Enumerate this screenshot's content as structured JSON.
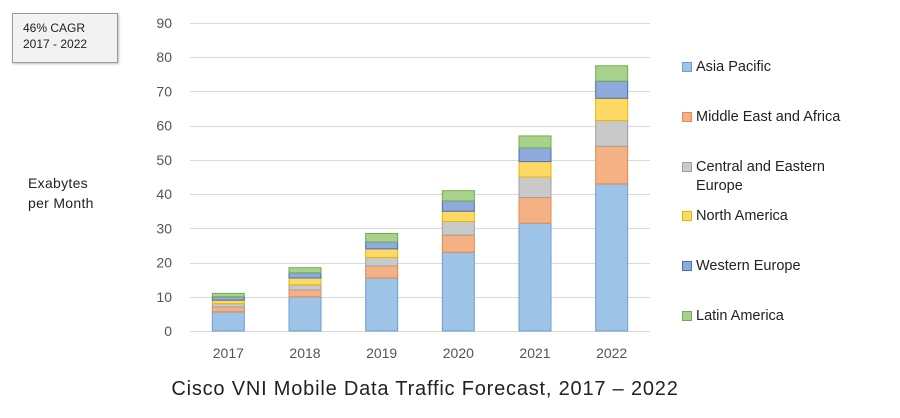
{
  "chart_data": {
    "type": "bar",
    "stacked": true,
    "title": "Cisco VNI Mobile Data Traffic Forecast, 2017 – 2022",
    "ylabel_lines": [
      "Exabytes",
      "per Month"
    ],
    "xlabel": "",
    "ylim": [
      0,
      90
    ],
    "yticks": [
      0,
      10,
      20,
      30,
      40,
      50,
      60,
      70,
      80,
      90
    ],
    "grid": true,
    "legend_position": "right",
    "annotation_lines": [
      "46% CAGR",
      "2017 - 2022"
    ],
    "categories": [
      "2017",
      "2018",
      "2019",
      "2020",
      "2021",
      "2022"
    ],
    "series": [
      {
        "name": "Asia Pacific",
        "color": "#9dc3e6",
        "stroke": "#6f9fce",
        "values": [
          5.6,
          10,
          15.5,
          23,
          31.5,
          43
        ]
      },
      {
        "name": "Middle East and Africa",
        "color": "#f4b183",
        "stroke": "#e08a55",
        "values": [
          1.4,
          2.0,
          3.5,
          5.0,
          7.5,
          11
        ]
      },
      {
        "name": "Central and Eastern\nEurope",
        "color": "#c9c9c9",
        "stroke": "#a0a0a0",
        "values": [
          1.0,
          1.5,
          2.5,
          4.0,
          6.0,
          7.5
        ]
      },
      {
        "name": "North America",
        "color": "#ffd966",
        "stroke": "#e6b800",
        "values": [
          1.0,
          2.0,
          2.5,
          3.0,
          4.5,
          6.5
        ]
      },
      {
        "name": "Western Europe",
        "color": "#8faadc",
        "stroke": "#4a6fb5",
        "values": [
          1.0,
          1.5,
          2.0,
          3.0,
          4.0,
          5.0
        ]
      },
      {
        "name": "Latin America",
        "color": "#a9d18e",
        "stroke": "#6fae4a",
        "values": [
          1.0,
          1.5,
          2.5,
          3.0,
          3.5,
          4.5
        ]
      }
    ]
  }
}
